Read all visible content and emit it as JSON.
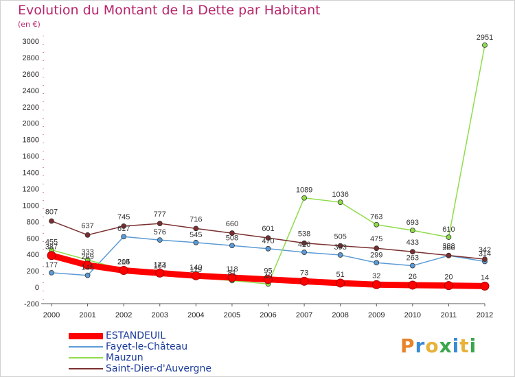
{
  "header": {
    "title": "Evolution du Montant de la Dette par Habitant",
    "unit": "(en €)"
  },
  "logo": {
    "text": "Proxiti",
    "letter_colors": [
      "#e8832a",
      "#3a8bd6",
      "#e8b23a",
      "#3aa84a",
      "#3a8bd6",
      "#e8b23a",
      "#3aa84a"
    ]
  },
  "chart_data": {
    "type": "line",
    "title": "Evolution du Montant de la Dette par Habitant",
    "ylabel": "(en €)",
    "xlabel": "",
    "x": [
      "2000",
      "2001",
      "2002",
      "2003",
      "2004",
      "2005",
      "2006",
      "2007",
      "2008",
      "2009",
      "2010",
      "2011",
      "2012"
    ],
    "ylim": [
      -200,
      3000
    ],
    "yticks": [
      -200,
      0,
      200,
      400,
      600,
      800,
      1000,
      1200,
      1400,
      1600,
      1800,
      2000,
      2200,
      2400,
      2600,
      2800,
      3000
    ],
    "grid": false,
    "legend_position": "bottom-left",
    "series": [
      {
        "name": "ESTANDEUIL",
        "color": "#ff0000",
        "values": [
          387,
          269,
          205,
          173,
          140,
          118,
          95,
          73,
          51,
          32,
          26,
          20,
          14
        ]
      },
      {
        "name": "Fayet-le-Château",
        "color": "#5b9bd5",
        "values": [
          177,
          145,
          617,
          576,
          545,
          508,
          470,
          426,
          393,
          299,
          263,
          386,
          314
        ]
      },
      {
        "name": "Mauzun",
        "color": "#8fdc4a",
        "values": [
          455,
          333,
          214,
          164,
          119,
          81,
          40,
          1089,
          1036,
          763,
          693,
          610,
          2951
        ]
      },
      {
        "name": "Saint-Dier-d'Auvergne",
        "color": "#7a2e2e",
        "values": [
          807,
          637,
          745,
          777,
          716,
          660,
          601,
          538,
          505,
          475,
          433,
          388,
          342
        ]
      }
    ]
  }
}
